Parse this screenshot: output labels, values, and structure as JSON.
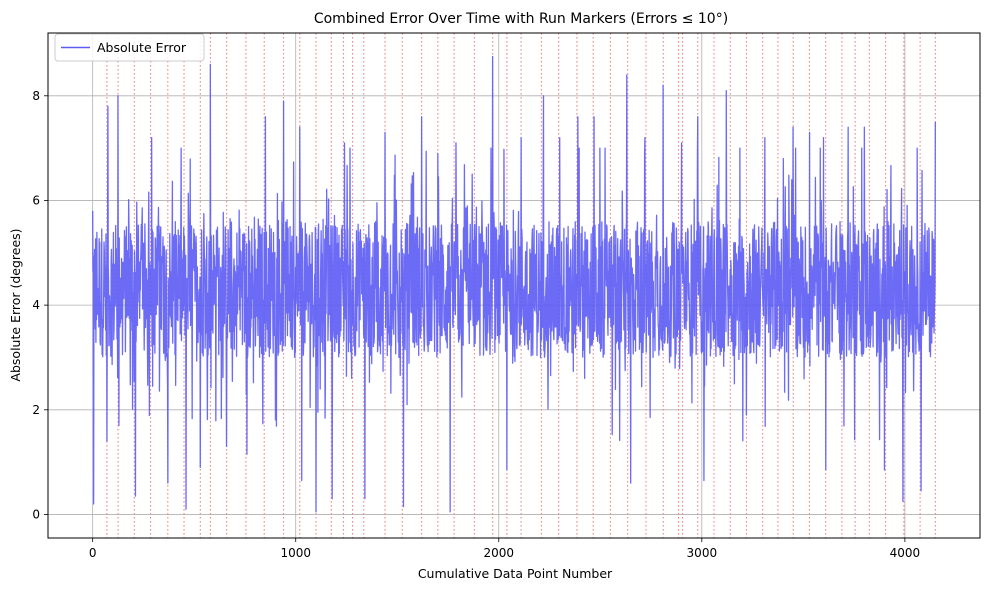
{
  "chart_data": {
    "type": "line",
    "title": "Combined Error Over Time with Run Markers (Errors ≤ 10°)",
    "xlabel": "Cumulative Data Point Number",
    "ylabel": "Absolute Error (degrees)",
    "xlim": [
      -220,
      4370
    ],
    "ylim": [
      -0.45,
      9.2
    ],
    "xticks": [
      0,
      1000,
      2000,
      3000,
      4000
    ],
    "yticks": [
      0,
      2,
      4,
      6,
      8
    ],
    "xtick_labels": [
      "0",
      "1000",
      "2000",
      "3000",
      "4000"
    ],
    "ytick_labels": [
      "0",
      "2",
      "4",
      "6",
      "8"
    ],
    "grid": true,
    "legend_position": "top-left",
    "series": [
      {
        "name": "Absolute Error",
        "color": "#5b5bf5",
        "x_start": 0,
        "x_end": 4150,
        "point_count": 4150,
        "y_min": 0.05,
        "y_max": 8.75,
        "peaks": [
          {
            "x": 0,
            "y": 5.8
          },
          {
            "x": 75,
            "y": 7.8
          },
          {
            "x": 125,
            "y": 8.0
          },
          {
            "x": 210,
            "y": 7.6
          },
          {
            "x": 290,
            "y": 7.2
          },
          {
            "x": 370,
            "y": 7.1
          },
          {
            "x": 460,
            "y": 7.8
          },
          {
            "x": 530,
            "y": 8.2
          },
          {
            "x": 580,
            "y": 8.6
          },
          {
            "x": 660,
            "y": 6.7
          },
          {
            "x": 760,
            "y": 7.4
          },
          {
            "x": 850,
            "y": 7.6
          },
          {
            "x": 940,
            "y": 7.9
          },
          {
            "x": 1020,
            "y": 7.4
          },
          {
            "x": 1100,
            "y": 7.1
          },
          {
            "x": 1180,
            "y": 7.4
          },
          {
            "x": 1240,
            "y": 7.1
          },
          {
            "x": 1340,
            "y": 8.2
          },
          {
            "x": 1440,
            "y": 7.3
          },
          {
            "x": 1530,
            "y": 6.9
          },
          {
            "x": 1620,
            "y": 7.6
          },
          {
            "x": 1700,
            "y": 6.9
          },
          {
            "x": 1790,
            "y": 7.1
          },
          {
            "x": 1970,
            "y": 8.75
          },
          {
            "x": 2040,
            "y": 7.6
          },
          {
            "x": 2110,
            "y": 7.2
          },
          {
            "x": 2220,
            "y": 8.0
          },
          {
            "x": 2300,
            "y": 7.2
          },
          {
            "x": 2390,
            "y": 7.6
          },
          {
            "x": 2470,
            "y": 7.6
          },
          {
            "x": 2630,
            "y": 8.4
          },
          {
            "x": 2720,
            "y": 7.2
          },
          {
            "x": 2810,
            "y": 8.2
          },
          {
            "x": 2900,
            "y": 7.1
          },
          {
            "x": 2980,
            "y": 7.6
          },
          {
            "x": 3120,
            "y": 8.1
          },
          {
            "x": 3220,
            "y": 7.4
          },
          {
            "x": 3310,
            "y": 7.2
          },
          {
            "x": 3450,
            "y": 7.4
          },
          {
            "x": 3530,
            "y": 7.3
          },
          {
            "x": 3600,
            "y": 7.2
          },
          {
            "x": 3720,
            "y": 7.4
          },
          {
            "x": 3800,
            "y": 7.4
          },
          {
            "x": 3900,
            "y": 7.3
          },
          {
            "x": 4080,
            "y": 7.8
          },
          {
            "x": 4150,
            "y": 7.5
          }
        ],
        "troughs": [
          {
            "x": 5,
            "y": 0.2
          },
          {
            "x": 70,
            "y": 1.4
          },
          {
            "x": 130,
            "y": 1.7
          },
          {
            "x": 210,
            "y": 0.35
          },
          {
            "x": 370,
            "y": 0.6
          },
          {
            "x": 460,
            "y": 0.1
          },
          {
            "x": 530,
            "y": 0.9
          },
          {
            "x": 660,
            "y": 1.3
          },
          {
            "x": 760,
            "y": 1.15
          },
          {
            "x": 1030,
            "y": 0.65
          },
          {
            "x": 1100,
            "y": 0.05
          },
          {
            "x": 1180,
            "y": 0.3
          },
          {
            "x": 1340,
            "y": 0.3
          },
          {
            "x": 1530,
            "y": 0.15
          },
          {
            "x": 1760,
            "y": 0.05
          },
          {
            "x": 2040,
            "y": 0.85
          },
          {
            "x": 2650,
            "y": 0.6
          },
          {
            "x": 3010,
            "y": 0.65
          },
          {
            "x": 3220,
            "y": 1.9
          },
          {
            "x": 3610,
            "y": 0.85
          },
          {
            "x": 3900,
            "y": 0.85
          },
          {
            "x": 3990,
            "y": 0.25
          },
          {
            "x": 4080,
            "y": 0.45
          }
        ]
      }
    ],
    "run_markers": {
      "name": "Run Markers",
      "color": "#f08080",
      "style": "dotted",
      "x": [
        70,
        125,
        205,
        285,
        370,
        450,
        530,
        580,
        660,
        755,
        845,
        940,
        1020,
        1100,
        1175,
        1235,
        1280,
        1335,
        1440,
        1525,
        1620,
        1700,
        1780,
        1880,
        1970,
        2040,
        2110,
        2210,
        2295,
        2385,
        2465,
        2550,
        2635,
        2725,
        2810,
        2885,
        2905,
        2980,
        3060,
        3140,
        3220,
        3300,
        3375,
        3450,
        3530,
        3610,
        3690,
        3755,
        3825,
        3905,
        3995,
        4075,
        4150
      ]
    }
  }
}
